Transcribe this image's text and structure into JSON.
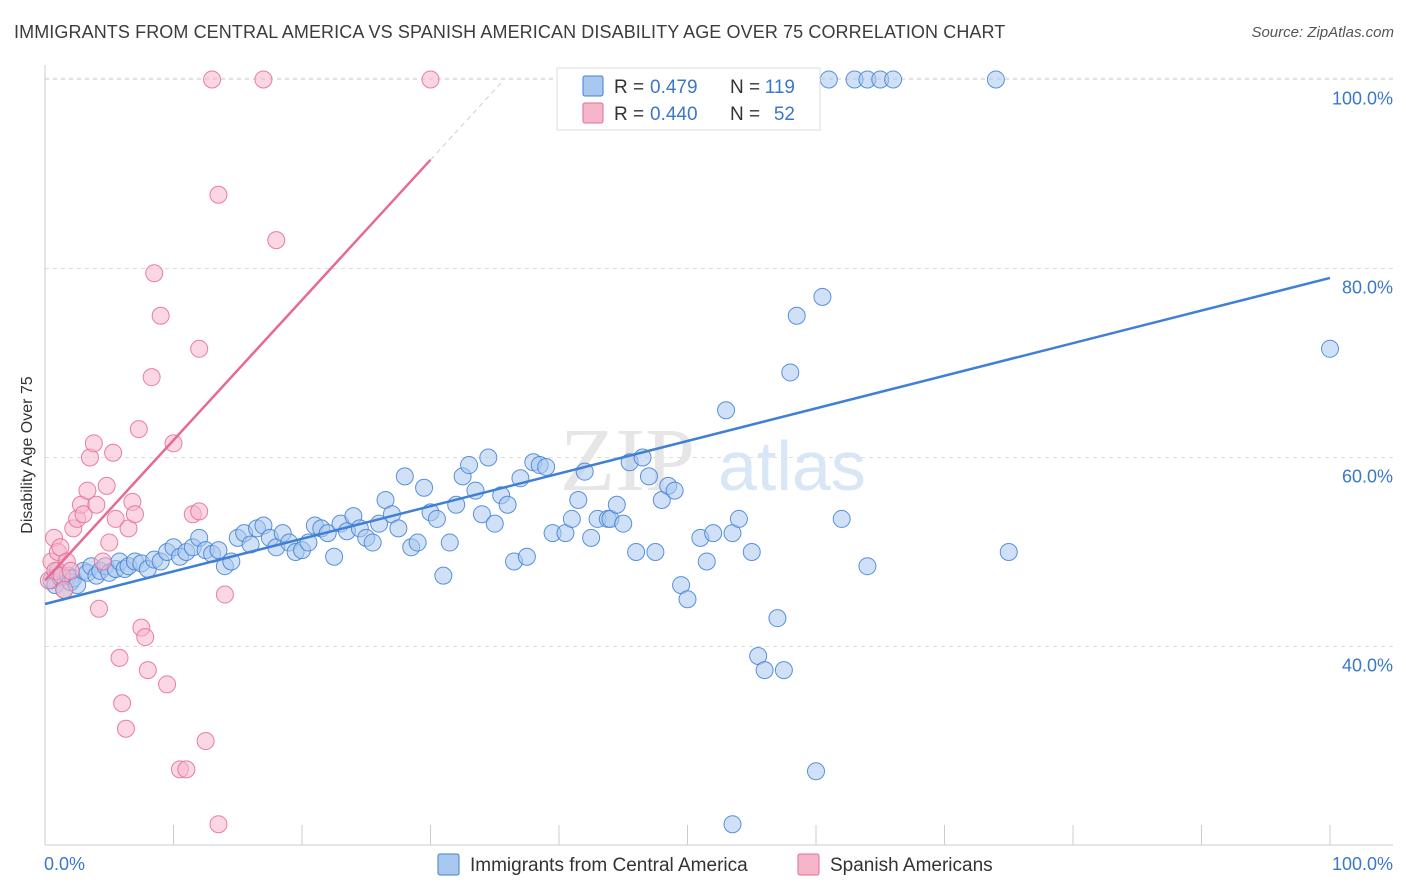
{
  "header": {
    "title": "IMMIGRANTS FROM CENTRAL AMERICA VS SPANISH AMERICAN DISABILITY AGE OVER 75 CORRELATION CHART",
    "source": "Source: ZipAtlas.com"
  },
  "watermark": {
    "part1": "ZIP",
    "part2": "atlas"
  },
  "colors": {
    "blue": "#3f7fd4",
    "blue_fill": "#a9c8f0",
    "pink": "#e66a95",
    "pink_fill": "#f5b6ca",
    "tick_label": "#3a78c9",
    "grid": "#dddddd",
    "axis": "#cccccc"
  },
  "legend_box": {
    "rows": [
      {
        "r_label": "R =",
        "r_value": "0.479",
        "n_label": "N =",
        "n_value": "119"
      },
      {
        "r_label": "R =",
        "r_value": "0.440",
        "n_label": "N =",
        "n_value": "52"
      }
    ]
  },
  "chart_data": {
    "type": "scatter",
    "title": "IMMIGRANTS FROM CENTRAL AMERICA VS SPANISH AMERICAN DISABILITY AGE OVER 75 CORRELATION CHART",
    "xlabel": "",
    "ylabel": "Disability Age Over 75",
    "xlim": [
      0,
      100
    ],
    "ylim": [
      19,
      101
    ],
    "x_tick_labels": [
      "0.0%",
      "100.0%"
    ],
    "y_ticks": [
      40,
      60,
      80,
      100
    ],
    "y_tick_labels": [
      "40.0%",
      "60.0%",
      "80.0%",
      "100.0%"
    ],
    "grid": true,
    "legend_position": "bottom",
    "series": [
      {
        "name": "Immigrants from Central America",
        "R": 0.479,
        "N": 119,
        "trend": {
          "x": [
            0,
            100
          ],
          "y": [
            44.5,
            79
          ]
        },
        "points": [
          [
            0.5,
            47
          ],
          [
            0.8,
            46.5
          ],
          [
            1,
            48
          ],
          [
            1.2,
            47.3
          ],
          [
            1.5,
            46
          ],
          [
            1.8,
            47.5
          ],
          [
            2,
            46.8
          ],
          [
            2.2,
            47.2
          ],
          [
            2.5,
            46.5
          ],
          [
            3,
            48
          ],
          [
            3.3,
            47.8
          ],
          [
            3.6,
            48.5
          ],
          [
            4,
            47.5
          ],
          [
            4.3,
            48
          ],
          [
            4.7,
            48.5
          ],
          [
            5,
            47.8
          ],
          [
            5.5,
            48.2
          ],
          [
            5.8,
            49
          ],
          [
            6.2,
            48.2
          ],
          [
            6.5,
            48.5
          ],
          [
            7,
            49
          ],
          [
            7.5,
            48.8
          ],
          [
            8,
            48.2
          ],
          [
            8.5,
            49.2
          ],
          [
            9,
            49
          ],
          [
            9.5,
            50
          ],
          [
            10,
            50.5
          ],
          [
            10.5,
            49.5
          ],
          [
            11,
            50
          ],
          [
            11.5,
            50.5
          ],
          [
            12,
            51.5
          ],
          [
            12.5,
            50.2
          ],
          [
            13,
            49.8
          ],
          [
            13.5,
            50.2
          ],
          [
            14,
            48.5
          ],
          [
            14.5,
            49
          ],
          [
            15,
            51.5
          ],
          [
            15.5,
            52
          ],
          [
            16,
            50.8
          ],
          [
            16.5,
            52.5
          ],
          [
            17,
            52.8
          ],
          [
            17.5,
            51.5
          ],
          [
            18,
            50.5
          ],
          [
            18.5,
            52
          ],
          [
            19,
            51
          ],
          [
            19.5,
            50
          ],
          [
            20,
            50.2
          ],
          [
            20.5,
            51
          ],
          [
            21,
            52.8
          ],
          [
            21.5,
            52.5
          ],
          [
            22,
            52
          ],
          [
            22.5,
            49.5
          ],
          [
            23,
            53
          ],
          [
            23.5,
            52.2
          ],
          [
            24,
            53.8
          ],
          [
            24.5,
            52.5
          ],
          [
            25,
            51.5
          ],
          [
            25.5,
            51
          ],
          [
            26,
            53
          ],
          [
            26.5,
            55.5
          ],
          [
            27,
            54
          ],
          [
            27.5,
            52.5
          ],
          [
            28,
            58
          ],
          [
            28.5,
            50.5
          ],
          [
            29,
            51
          ],
          [
            29.5,
            56.8
          ],
          [
            30,
            54.2
          ],
          [
            30.5,
            53.5
          ],
          [
            31,
            47.5
          ],
          [
            31.5,
            51
          ],
          [
            32,
            55
          ],
          [
            32.5,
            58
          ],
          [
            33,
            59.2
          ],
          [
            33.5,
            56.5
          ],
          [
            34,
            54
          ],
          [
            34.5,
            60
          ],
          [
            35,
            53
          ],
          [
            35.5,
            56
          ],
          [
            36,
            55
          ],
          [
            36.5,
            49
          ],
          [
            37,
            57.8
          ],
          [
            37.5,
            49.5
          ],
          [
            38,
            59.5
          ],
          [
            38.5,
            59.2
          ],
          [
            39,
            59
          ],
          [
            39.5,
            52
          ],
          [
            40.5,
            52
          ],
          [
            41,
            53.5
          ],
          [
            41.5,
            55.5
          ],
          [
            42,
            58.5
          ],
          [
            42.5,
            51.5
          ],
          [
            43,
            53.5
          ],
          [
            43.8,
            53.5
          ],
          [
            44,
            53.5
          ],
          [
            44.5,
            55
          ],
          [
            45,
            53
          ],
          [
            45.5,
            59.5
          ],
          [
            46,
            50
          ],
          [
            46.5,
            60
          ],
          [
            47,
            58
          ],
          [
            47.5,
            50
          ],
          [
            48,
            55.5
          ],
          [
            48.5,
            57
          ],
          [
            49,
            56.5
          ],
          [
            49.5,
            46.5
          ],
          [
            50,
            45
          ],
          [
            51,
            51.5
          ],
          [
            51.5,
            49
          ],
          [
            52,
            52
          ],
          [
            53,
            65
          ],
          [
            53.5,
            52
          ],
          [
            54,
            53.5
          ],
          [
            55,
            50
          ],
          [
            55.5,
            39
          ],
          [
            56,
            37.5
          ],
          [
            57,
            43
          ],
          [
            57.5,
            37.5
          ],
          [
            58,
            69
          ],
          [
            58.5,
            75
          ],
          [
            60,
            26.8
          ],
          [
            60.5,
            77
          ],
          [
            61,
            100
          ],
          [
            62,
            53.5
          ],
          [
            63,
            100
          ],
          [
            64,
            100
          ],
          [
            65,
            100
          ],
          [
            66,
            100
          ],
          [
            74,
            100
          ],
          [
            75,
            50
          ],
          [
            100,
            71.5
          ],
          [
            64,
            48.5
          ],
          [
            53.5,
            21.2
          ]
        ]
      },
      {
        "name": "Spanish Americans",
        "R": 0.44,
        "N": 52,
        "trend": {
          "x": [
            0,
            30
          ],
          "y": [
            47,
            91.5
          ]
        },
        "points": [
          [
            0.3,
            47
          ],
          [
            0.5,
            49
          ],
          [
            0.7,
            51.5
          ],
          [
            0.8,
            48
          ],
          [
            1,
            50
          ],
          [
            1.2,
            50.5
          ],
          [
            1.3,
            47.5
          ],
          [
            1.5,
            46
          ],
          [
            1.7,
            49
          ],
          [
            2,
            48
          ],
          [
            2.2,
            52.5
          ],
          [
            2.5,
            53.5
          ],
          [
            2.8,
            55
          ],
          [
            3,
            54
          ],
          [
            3.3,
            56.5
          ],
          [
            3.5,
            60
          ],
          [
            3.8,
            61.5
          ],
          [
            4,
            55
          ],
          [
            4.2,
            44
          ],
          [
            4.5,
            49
          ],
          [
            4.8,
            57
          ],
          [
            5,
            51
          ],
          [
            5.3,
            60.5
          ],
          [
            5.5,
            53.5
          ],
          [
            5.8,
            38.8
          ],
          [
            6,
            34
          ],
          [
            6.3,
            31.3
          ],
          [
            6.5,
            52.5
          ],
          [
            6.8,
            55.3
          ],
          [
            7,
            54
          ],
          [
            7.3,
            63
          ],
          [
            7.5,
            42
          ],
          [
            7.8,
            41
          ],
          [
            8,
            37.5
          ],
          [
            8.3,
            68.5
          ],
          [
            8.5,
            79.5
          ],
          [
            9,
            75
          ],
          [
            9.5,
            36
          ],
          [
            10,
            61.5
          ],
          [
            10.5,
            27
          ],
          [
            11,
            27
          ],
          [
            11.5,
            54
          ],
          [
            12,
            71.5
          ],
          [
            12.5,
            30
          ],
          [
            13,
            100
          ],
          [
            13.5,
            87.8
          ],
          [
            14,
            45.5
          ],
          [
            17,
            100
          ],
          [
            18,
            83
          ],
          [
            30,
            100
          ],
          [
            13.5,
            21.2
          ],
          [
            12,
            54.3
          ]
        ]
      }
    ]
  }
}
